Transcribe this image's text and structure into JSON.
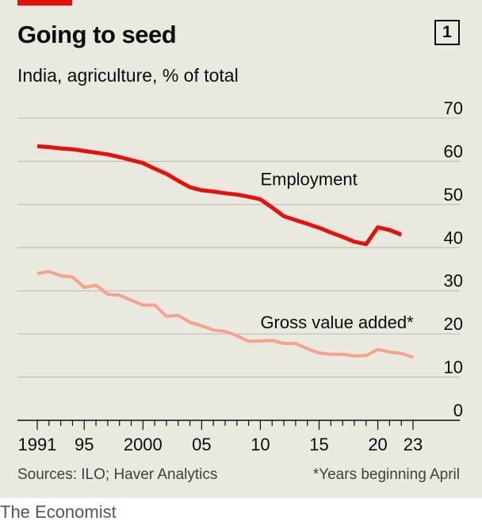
{
  "header": {
    "title": "Going to seed",
    "chart_number": "1",
    "subtitle": "India, agriculture, % of total"
  },
  "footer": {
    "source": "Sources: ILO; Haver Analytics",
    "footnote": "*Years beginning April",
    "brand": "The Economist"
  },
  "colors": {
    "employment": "#e3120b",
    "gva": "#f5a38c",
    "grid": "#b7b7b0",
    "axis": "#0c0c0c",
    "background": "#e9e9e0"
  },
  "chart_data": {
    "type": "line",
    "title": "Going to seed",
    "subtitle": "India, agriculture, % of total",
    "x_range": [
      1991,
      2023
    ],
    "x_tick_values": [
      1991,
      1995,
      2000,
      2005,
      2010,
      2015,
      2020,
      2023
    ],
    "x_tick_labels": [
      "1991",
      "95",
      "2000",
      "05",
      "10",
      "15",
      "20",
      "23"
    ],
    "ylim": [
      0,
      70
    ],
    "y_ticks": [
      0,
      10,
      20,
      30,
      40,
      50,
      60,
      70
    ],
    "grid": true,
    "series": [
      {
        "name": "Employment",
        "x": [
          1991,
          1992,
          1993,
          1994,
          1995,
          1996,
          1997,
          1998,
          1999,
          2000,
          2001,
          2002,
          2003,
          2004,
          2005,
          2006,
          2007,
          2008,
          2009,
          2010,
          2011,
          2012,
          2013,
          2014,
          2015,
          2016,
          2017,
          2018,
          2019,
          2020,
          2021,
          2022
        ],
        "values": [
          63.5,
          63.3,
          63.0,
          62.8,
          62.4,
          62.0,
          61.6,
          61.0,
          60.3,
          59.6,
          58.3,
          57.1,
          55.5,
          54.0,
          53.3,
          53.0,
          52.6,
          52.3,
          51.8,
          51.2,
          49.3,
          47.3,
          46.4,
          45.5,
          44.6,
          43.5,
          42.5,
          41.4,
          40.8,
          44.7,
          44.1,
          43.0
        ]
      },
      {
        "name": "Gross value added*",
        "x": [
          1991,
          1992,
          1993,
          1994,
          1995,
          1996,
          1997,
          1998,
          1999,
          2000,
          2001,
          2002,
          2003,
          2004,
          2005,
          2006,
          2007,
          2008,
          2009,
          2010,
          2011,
          2012,
          2013,
          2014,
          2015,
          2016,
          2017,
          2018,
          2019,
          2020,
          2021,
          2022,
          2023
        ],
        "values": [
          34.0,
          34.5,
          33.5,
          33.2,
          30.8,
          31.3,
          29.2,
          29.0,
          27.8,
          26.7,
          26.7,
          24.1,
          24.3,
          22.7,
          21.9,
          20.9,
          20.6,
          19.6,
          18.3,
          18.4,
          18.5,
          17.8,
          17.8,
          16.6,
          15.6,
          15.3,
          15.3,
          14.9,
          15.0,
          16.4,
          15.8,
          15.5,
          14.6
        ]
      }
    ]
  }
}
